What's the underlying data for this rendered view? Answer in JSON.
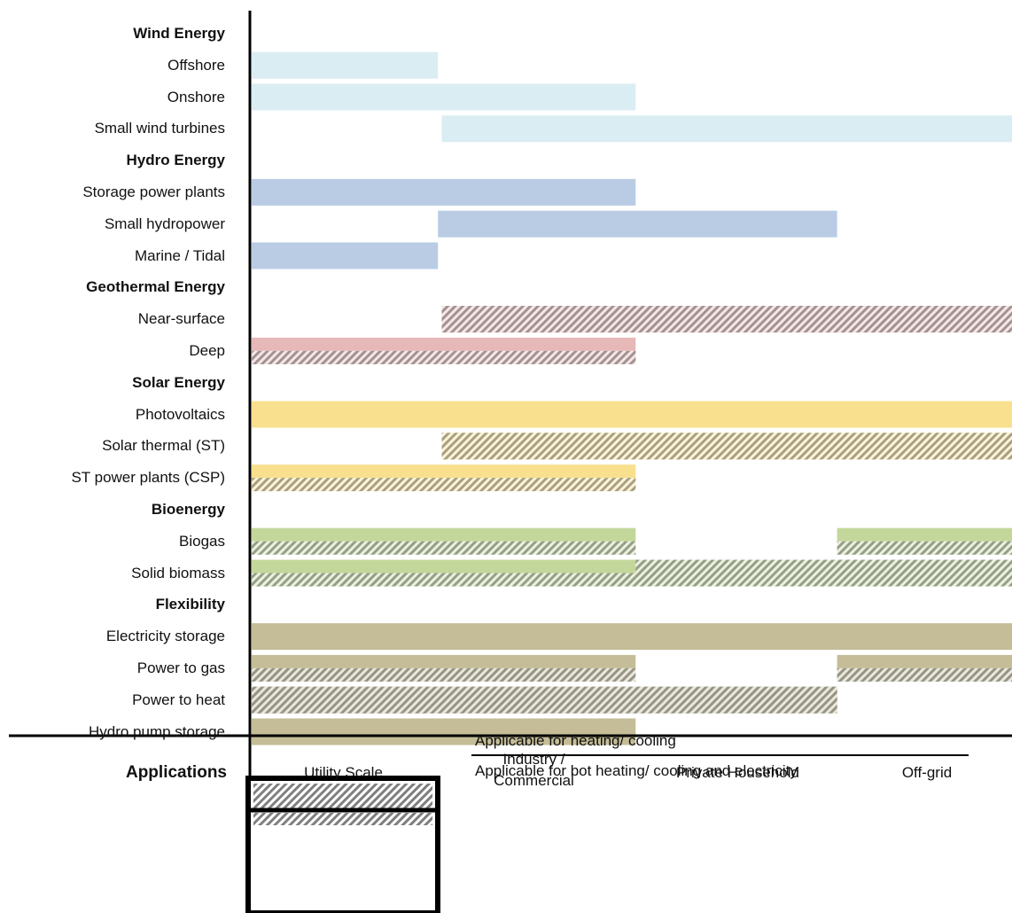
{
  "footer": {
    "applications_label": "Applications",
    "columns": [
      "Utility Scale",
      "Industry / Commercial",
      "Private Household",
      "Off-grid"
    ],
    "column_line1": [
      "Utility Scale",
      "Industry /",
      "Private Household",
      "Off-grid"
    ],
    "column_line2": [
      "",
      "Commercial",
      "",
      ""
    ]
  },
  "legend": {
    "items": [
      {
        "label": "Applicable for heating/ cooling",
        "pattern": "hatched"
      },
      {
        "label": "Applicable for bot heating/ cooling and electricity",
        "pattern": "hatched-solid"
      }
    ]
  },
  "colors": {
    "wind": "#daedf2",
    "hydro": "#b9cce4",
    "geothermal": "#e6b8b7",
    "solar": "#f8e08e",
    "bioenergy": "#c4d79b",
    "flexibility": "#c4bd97",
    "hatch": "#7f7f7f"
  },
  "rows": [
    {
      "label": "Wind Energy",
      "type": "category"
    },
    {
      "label": "Offshore",
      "type": "item",
      "color": "wind",
      "segments": [
        {
          "from": 0,
          "to": 0.98,
          "style": "solid"
        }
      ]
    },
    {
      "label": "Onshore",
      "type": "item",
      "color": "wind",
      "segments": [
        {
          "from": 0,
          "to": 2.02,
          "style": "solid"
        }
      ]
    },
    {
      "label": "Small wind turbines",
      "type": "item",
      "color": "wind",
      "segments": [
        {
          "from": 1,
          "to": 4,
          "style": "solid"
        }
      ]
    },
    {
      "label": "Hydro Energy",
      "type": "category"
    },
    {
      "label": "Storage power plants",
      "type": "item",
      "color": "hydro",
      "segments": [
        {
          "from": 0,
          "to": 2.02,
          "style": "solid"
        }
      ]
    },
    {
      "label": "Small hydropower",
      "type": "item",
      "color": "hydro",
      "segments": [
        {
          "from": 0.98,
          "to": 3.08,
          "style": "solid"
        }
      ]
    },
    {
      "label": "Marine / Tidal",
      "type": "item",
      "color": "hydro",
      "segments": [
        {
          "from": 0,
          "to": 0.98,
          "style": "solid"
        }
      ]
    },
    {
      "label": "Geothermal Energy",
      "type": "category"
    },
    {
      "label": "Near-surface",
      "type": "item",
      "color": "geothermal",
      "segments": [
        {
          "from": 1,
          "to": 4,
          "style": "hatched"
        }
      ]
    },
    {
      "label": "Deep",
      "type": "item",
      "color": "geothermal",
      "segments": [
        {
          "from": 0,
          "to": 2.02,
          "style": "both"
        }
      ]
    },
    {
      "label": "Solar Energy",
      "type": "category"
    },
    {
      "label": "Photovoltaics",
      "type": "item",
      "color": "solar",
      "segments": [
        {
          "from": 0,
          "to": 4,
          "style": "solid"
        }
      ]
    },
    {
      "label": "Solar thermal (ST)",
      "type": "item",
      "color": "solar",
      "segments": [
        {
          "from": 1,
          "to": 4,
          "style": "hatched"
        }
      ]
    },
    {
      "label": "ST power plants (CSP)",
      "type": "item",
      "color": "solar",
      "segments": [
        {
          "from": 0,
          "to": 2.02,
          "style": "both"
        }
      ]
    },
    {
      "label": "Bioenergy",
      "type": "category"
    },
    {
      "label": "Biogas",
      "type": "item",
      "color": "bioenergy",
      "segments": [
        {
          "from": 0,
          "to": 2.02,
          "style": "both"
        },
        {
          "from": 3.08,
          "to": 4,
          "style": "both"
        }
      ]
    },
    {
      "label": "Solid biomass",
      "type": "item",
      "color": "bioenergy",
      "segments": [
        {
          "from": 0,
          "to": 2.02,
          "style": "both"
        },
        {
          "from": 2.02,
          "to": 4,
          "style": "hatched"
        }
      ]
    },
    {
      "label": "Flexibility",
      "type": "category"
    },
    {
      "label": "Electricity storage",
      "type": "item",
      "color": "flexibility",
      "segments": [
        {
          "from": 0,
          "to": 4,
          "style": "solid"
        }
      ]
    },
    {
      "label": "Power to gas",
      "type": "item",
      "color": "flexibility",
      "segments": [
        {
          "from": 0,
          "to": 2.02,
          "style": "both"
        },
        {
          "from": 3.08,
          "to": 4,
          "style": "both"
        }
      ]
    },
    {
      "label": "Power to heat",
      "type": "item",
      "color": "flexibility",
      "segments": [
        {
          "from": 0,
          "to": 3.08,
          "style": "hatched"
        }
      ]
    },
    {
      "label": "Hydro pump storage",
      "type": "item",
      "color": "flexibility",
      "segments": [
        {
          "from": 0,
          "to": 2.02,
          "style": "solid"
        }
      ]
    }
  ]
}
